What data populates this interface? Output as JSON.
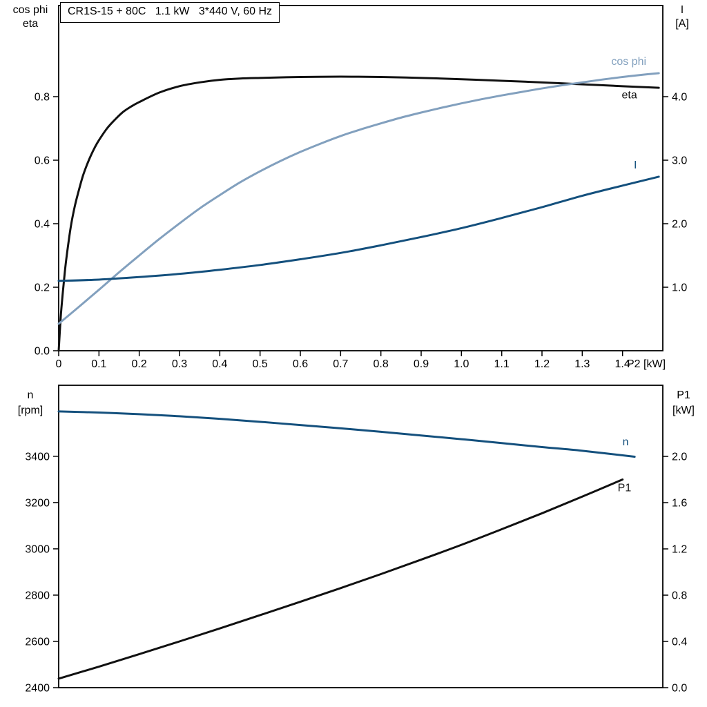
{
  "title_box": {
    "text": "CR1S-15 + 80C   1.1 kW   3*440 V, 60 Hz"
  },
  "colors": {
    "curve_black": "#111111",
    "curve_light_blue": "#82a0be",
    "curve_dark_blue": "#14507d",
    "axis": "#000000",
    "background": "#ffffff"
  },
  "chart_data": [
    {
      "id": "top",
      "type": "line",
      "title": "CR1S-15 + 80C   1.1 kW   3*440 V, 60 Hz",
      "grid": false,
      "legend": "inline-labels",
      "x_axis": {
        "label": "P2 [kW]",
        "min": 0,
        "max": 1.5,
        "ticks": [
          0,
          0.1,
          0.2,
          0.3,
          0.4,
          0.5,
          0.6,
          0.7,
          0.8,
          0.9,
          1.0,
          1.1,
          1.2,
          1.3,
          1.4
        ],
        "tick_labels": [
          "0",
          "0.1",
          "0.2",
          "0.3",
          "0.4",
          "0.5",
          "0.6",
          "0.7",
          "0.8",
          "0.9",
          "1.0",
          "1.1",
          "1.2",
          "1.3",
          "1.4"
        ],
        "show_tick_labels": true
      },
      "left_axis": {
        "header_lines": [
          "cos phi",
          "eta"
        ],
        "min": 0,
        "max": 1.087,
        "ticks": [
          0,
          0.2,
          0.4,
          0.6,
          0.8
        ],
        "tick_labels": [
          "0.0",
          "0.2",
          "0.4",
          "0.6",
          "0.8"
        ]
      },
      "right_axis": {
        "header_lines": [
          "I",
          "[A]"
        ],
        "min": 0,
        "max": 5.435,
        "ticks": [
          1,
          2,
          3,
          4
        ],
        "tick_labels": [
          "1.0",
          "2.0",
          "3.0",
          "4.0"
        ]
      },
      "series": [
        {
          "name": "eta",
          "axis": "left",
          "color": "curve_black",
          "label": "eta",
          "label_at": {
            "x": 1.398,
            "v": 0.795,
            "anchor": "start"
          },
          "points": [
            [
              0,
              0
            ],
            [
              0.005,
              0.105
            ],
            [
              0.01,
              0.18
            ],
            [
              0.015,
              0.245
            ],
            [
              0.02,
              0.3
            ],
            [
              0.03,
              0.39
            ],
            [
              0.04,
              0.455
            ],
            [
              0.05,
              0.505
            ],
            [
              0.06,
              0.55
            ],
            [
              0.07,
              0.585
            ],
            [
              0.08,
              0.615
            ],
            [
              0.09,
              0.641
            ],
            [
              0.1,
              0.663
            ],
            [
              0.12,
              0.7
            ],
            [
              0.14,
              0.728
            ],
            [
              0.16,
              0.752
            ],
            [
              0.18,
              0.769
            ],
            [
              0.2,
              0.783
            ],
            [
              0.25,
              0.813
            ],
            [
              0.3,
              0.833
            ],
            [
              0.35,
              0.845
            ],
            [
              0.4,
              0.853
            ],
            [
              0.45,
              0.857
            ],
            [
              0.5,
              0.859
            ],
            [
              0.6,
              0.862
            ],
            [
              0.7,
              0.863
            ],
            [
              0.8,
              0.862
            ],
            [
              0.9,
              0.859
            ],
            [
              1.0,
              0.855
            ],
            [
              1.1,
              0.85
            ],
            [
              1.2,
              0.845
            ],
            [
              1.3,
              0.839
            ],
            [
              1.4,
              0.833
            ],
            [
              1.49,
              0.828
            ]
          ]
        },
        {
          "name": "cos phi",
          "axis": "left",
          "color": "curve_light_blue",
          "label": "cos phi",
          "label_at": {
            "x": 1.372,
            "v": 0.9,
            "anchor": "start"
          },
          "points": [
            [
              0,
              0.085
            ],
            [
              0.05,
              0.138
            ],
            [
              0.1,
              0.192
            ],
            [
              0.15,
              0.247
            ],
            [
              0.2,
              0.3
            ],
            [
              0.25,
              0.352
            ],
            [
              0.3,
              0.401
            ],
            [
              0.35,
              0.448
            ],
            [
              0.4,
              0.49
            ],
            [
              0.45,
              0.53
            ],
            [
              0.5,
              0.565
            ],
            [
              0.55,
              0.597
            ],
            [
              0.6,
              0.626
            ],
            [
              0.65,
              0.652
            ],
            [
              0.7,
              0.676
            ],
            [
              0.75,
              0.697
            ],
            [
              0.8,
              0.716
            ],
            [
              0.85,
              0.734
            ],
            [
              0.9,
              0.75
            ],
            [
              0.95,
              0.765
            ],
            [
              1.0,
              0.779
            ],
            [
              1.05,
              0.792
            ],
            [
              1.1,
              0.804
            ],
            [
              1.15,
              0.815
            ],
            [
              1.2,
              0.826
            ],
            [
              1.25,
              0.836
            ],
            [
              1.3,
              0.845
            ],
            [
              1.35,
              0.854
            ],
            [
              1.4,
              0.862
            ],
            [
              1.45,
              0.869
            ],
            [
              1.49,
              0.874
            ]
          ]
        },
        {
          "name": "I",
          "axis": "right",
          "color": "curve_dark_blue",
          "label": "I",
          "label_at": {
            "x": 1.428,
            "v": 2.87,
            "anchor": "start"
          },
          "points": [
            [
              0,
              1.1
            ],
            [
              0.1,
              1.12
            ],
            [
              0.2,
              1.16
            ],
            [
              0.3,
              1.21
            ],
            [
              0.4,
              1.275
            ],
            [
              0.5,
              1.35
            ],
            [
              0.6,
              1.44
            ],
            [
              0.7,
              1.54
            ],
            [
              0.8,
              1.66
            ],
            [
              0.9,
              1.79
            ],
            [
              1.0,
              1.93
            ],
            [
              1.1,
              2.09
            ],
            [
              1.2,
              2.26
            ],
            [
              1.3,
              2.44
            ],
            [
              1.4,
              2.6
            ],
            [
              1.49,
              2.74
            ]
          ]
        }
      ]
    },
    {
      "id": "bottom",
      "type": "line",
      "title": "",
      "grid": false,
      "legend": "inline-labels",
      "x_axis": {
        "label": "",
        "min": 0,
        "max": 1.5,
        "ticks": [],
        "tick_labels": [],
        "show_tick_labels": false
      },
      "left_axis": {
        "header_lines": [
          "n",
          "[rpm]"
        ],
        "min": 2400,
        "max": 3707,
        "ticks": [
          2400,
          2600,
          2800,
          3000,
          3200,
          3400
        ],
        "tick_labels": [
          "2400",
          "2600",
          "2800",
          "3000",
          "3200",
          "3400"
        ]
      },
      "right_axis": {
        "header_lines": [
          "P1",
          "[kW]"
        ],
        "min": 0,
        "max": 2.615,
        "ticks": [
          0,
          0.4,
          0.8,
          1.2,
          1.6,
          2.0
        ],
        "tick_labels": [
          "0.0",
          "0.4",
          "0.8",
          "1.2",
          "1.6",
          "2.0"
        ]
      },
      "series": [
        {
          "name": "n",
          "axis": "left",
          "color": "curve_dark_blue",
          "label": "n",
          "label_at": {
            "x": 1.4,
            "v": 3448,
            "anchor": "start"
          },
          "points": [
            [
              0,
              3594
            ],
            [
              0.1,
              3589
            ],
            [
              0.2,
              3582
            ],
            [
              0.3,
              3573
            ],
            [
              0.4,
              3562
            ],
            [
              0.5,
              3549
            ],
            [
              0.6,
              3535
            ],
            [
              0.7,
              3521
            ],
            [
              0.8,
              3506
            ],
            [
              0.9,
              3490
            ],
            [
              1.0,
              3474
            ],
            [
              1.1,
              3457
            ],
            [
              1.2,
              3440
            ],
            [
              1.3,
              3424
            ],
            [
              1.43,
              3398
            ]
          ]
        },
        {
          "name": "P1",
          "axis": "right",
          "color": "curve_black",
          "label": "P1",
          "label_at": {
            "x": 1.388,
            "v": 1.7,
            "anchor": "start"
          },
          "points": [
            [
              0,
              0.078
            ],
            [
              0.1,
              0.182
            ],
            [
              0.2,
              0.29
            ],
            [
              0.3,
              0.4
            ],
            [
              0.4,
              0.512
            ],
            [
              0.5,
              0.627
            ],
            [
              0.6,
              0.743
            ],
            [
              0.7,
              0.861
            ],
            [
              0.8,
              0.982
            ],
            [
              0.9,
              1.107
            ],
            [
              1.0,
              1.235
            ],
            [
              1.1,
              1.37
            ],
            [
              1.2,
              1.508
            ],
            [
              1.3,
              1.652
            ],
            [
              1.4,
              1.8
            ]
          ]
        }
      ]
    }
  ]
}
